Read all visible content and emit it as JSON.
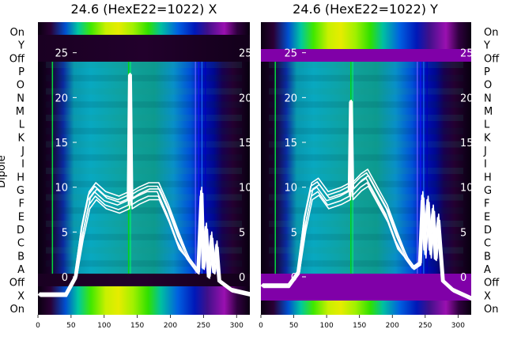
{
  "figure": {
    "ylabel": "Dipole"
  },
  "chart_data": [
    {
      "type": "heatmap",
      "title": "24.6 (HexE22=1022) X",
      "row_labels": [
        "On",
        "Y",
        "Off",
        "P",
        "O",
        "N",
        "M",
        "L",
        "K",
        "J",
        "I",
        "H",
        "G",
        "F",
        "E",
        "D",
        "C",
        "B",
        "A",
        "Off",
        "X",
        "On"
      ],
      "x_ticks": [
        0,
        50,
        100,
        150,
        200,
        250,
        300
      ],
      "y_ticks": [
        0,
        5,
        10,
        15,
        20,
        25
      ],
      "xlim": [
        0,
        320
      ],
      "ylim": [
        -3,
        27
      ],
      "colormap": "nipy_spectral",
      "overlay_line_color": "#ffffff",
      "overlay_profile": {
        "x": [
          0,
          20,
          40,
          55,
          65,
          75,
          85,
          100,
          120,
          135,
          137,
          139,
          150,
          165,
          180,
          195,
          210,
          225,
          235,
          240,
          245,
          248,
          252,
          256,
          260,
          264,
          268,
          272,
          290,
          320
        ],
        "y": [
          -2,
          -2,
          -2,
          0,
          5,
          8.5,
          9.5,
          8.5,
          8,
          8.5,
          22.5,
          8.5,
          9,
          9.5,
          9.5,
          7,
          4,
          2,
          1,
          0.5,
          9,
          1,
          5,
          0,
          4,
          0.5,
          3,
          -0.5,
          -1.5,
          -2
        ]
      }
    },
    {
      "type": "heatmap",
      "title": "24.6 (HexE22=1022) Y",
      "row_labels": [
        "On",
        "Y",
        "Off",
        "P",
        "O",
        "N",
        "M",
        "L",
        "K",
        "J",
        "I",
        "H",
        "G",
        "F",
        "E",
        "D",
        "C",
        "B",
        "A",
        "Off",
        "X",
        "On"
      ],
      "x_ticks": [
        0,
        50,
        100,
        150,
        200,
        250,
        300
      ],
      "y_ticks": [
        0,
        5,
        10,
        15,
        20,
        25
      ],
      "xlim": [
        0,
        320
      ],
      "ylim": [
        -3,
        27
      ],
      "colormap": "nipy_spectral",
      "overlay_line_color": "#ffffff",
      "overlay_profile": {
        "x": [
          0,
          20,
          40,
          55,
          65,
          75,
          85,
          100,
          120,
          133,
          135,
          137,
          150,
          160,
          175,
          190,
          205,
          220,
          230,
          240,
          244,
          248,
          252,
          256,
          260,
          264,
          268,
          275,
          290,
          320
        ],
        "y": [
          -1,
          -1,
          -1,
          0.5,
          6,
          9.5,
          10,
          8.5,
          9,
          9.5,
          19.5,
          9.5,
          10.5,
          11,
          9,
          7,
          4,
          2,
          1,
          1.5,
          8.5,
          3,
          8,
          3,
          7,
          2,
          6,
          -0.5,
          -1.5,
          -2.5
        ]
      }
    }
  ]
}
